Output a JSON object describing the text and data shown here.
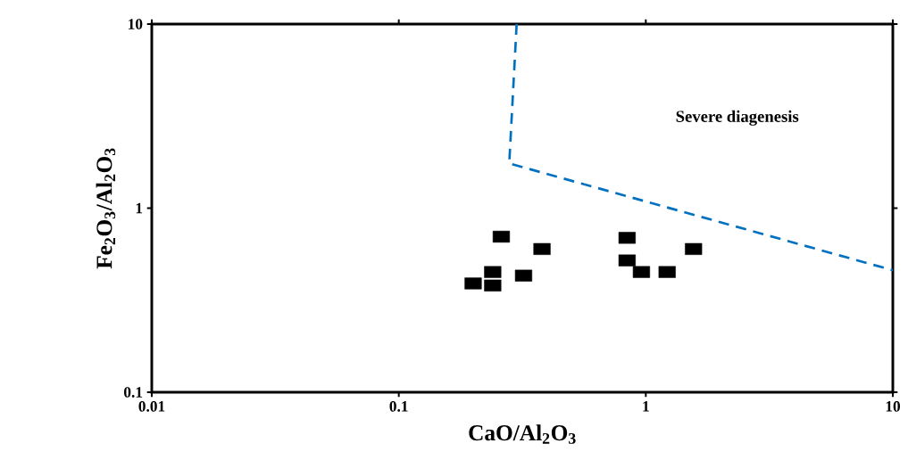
{
  "chart_data": {
    "type": "scatter",
    "xlabel": "CaO/Al$_{2}$O$_{3}$",
    "ylabel": "Fe$_{2}$O$_{3}$/Al$_{2}$O$_{3}$",
    "log": "xy",
    "xlim": [
      0.01,
      10
    ],
    "ylim": [
      0.1,
      10
    ],
    "xticks": [
      0.01,
      0.1,
      1,
      10
    ],
    "yticks": [
      0.1,
      1,
      10
    ],
    "grid": false,
    "annotations": [
      "Severe diagenesis"
    ],
    "series": [
      {
        "color": "#000000",
        "marker": "square",
        "x": [
          0.26,
          0.38,
          0.2,
          0.24,
          0.24,
          0.32,
          0.84,
          0.84,
          0.96,
          1.22,
          1.56
        ],
        "values": [
          0.7,
          0.6,
          0.39,
          0.45,
          0.38,
          0.43,
          0.69,
          0.52,
          0.45,
          0.45,
          0.6
        ]
      },
      {
        "type": "line",
        "color": "#0070c0",
        "line_style": "dashed",
        "marker": "none",
        "x": [
          0.3,
          0.28,
          10
        ],
        "values": [
          10,
          1.75,
          0.46
        ]
      }
    ]
  }
}
